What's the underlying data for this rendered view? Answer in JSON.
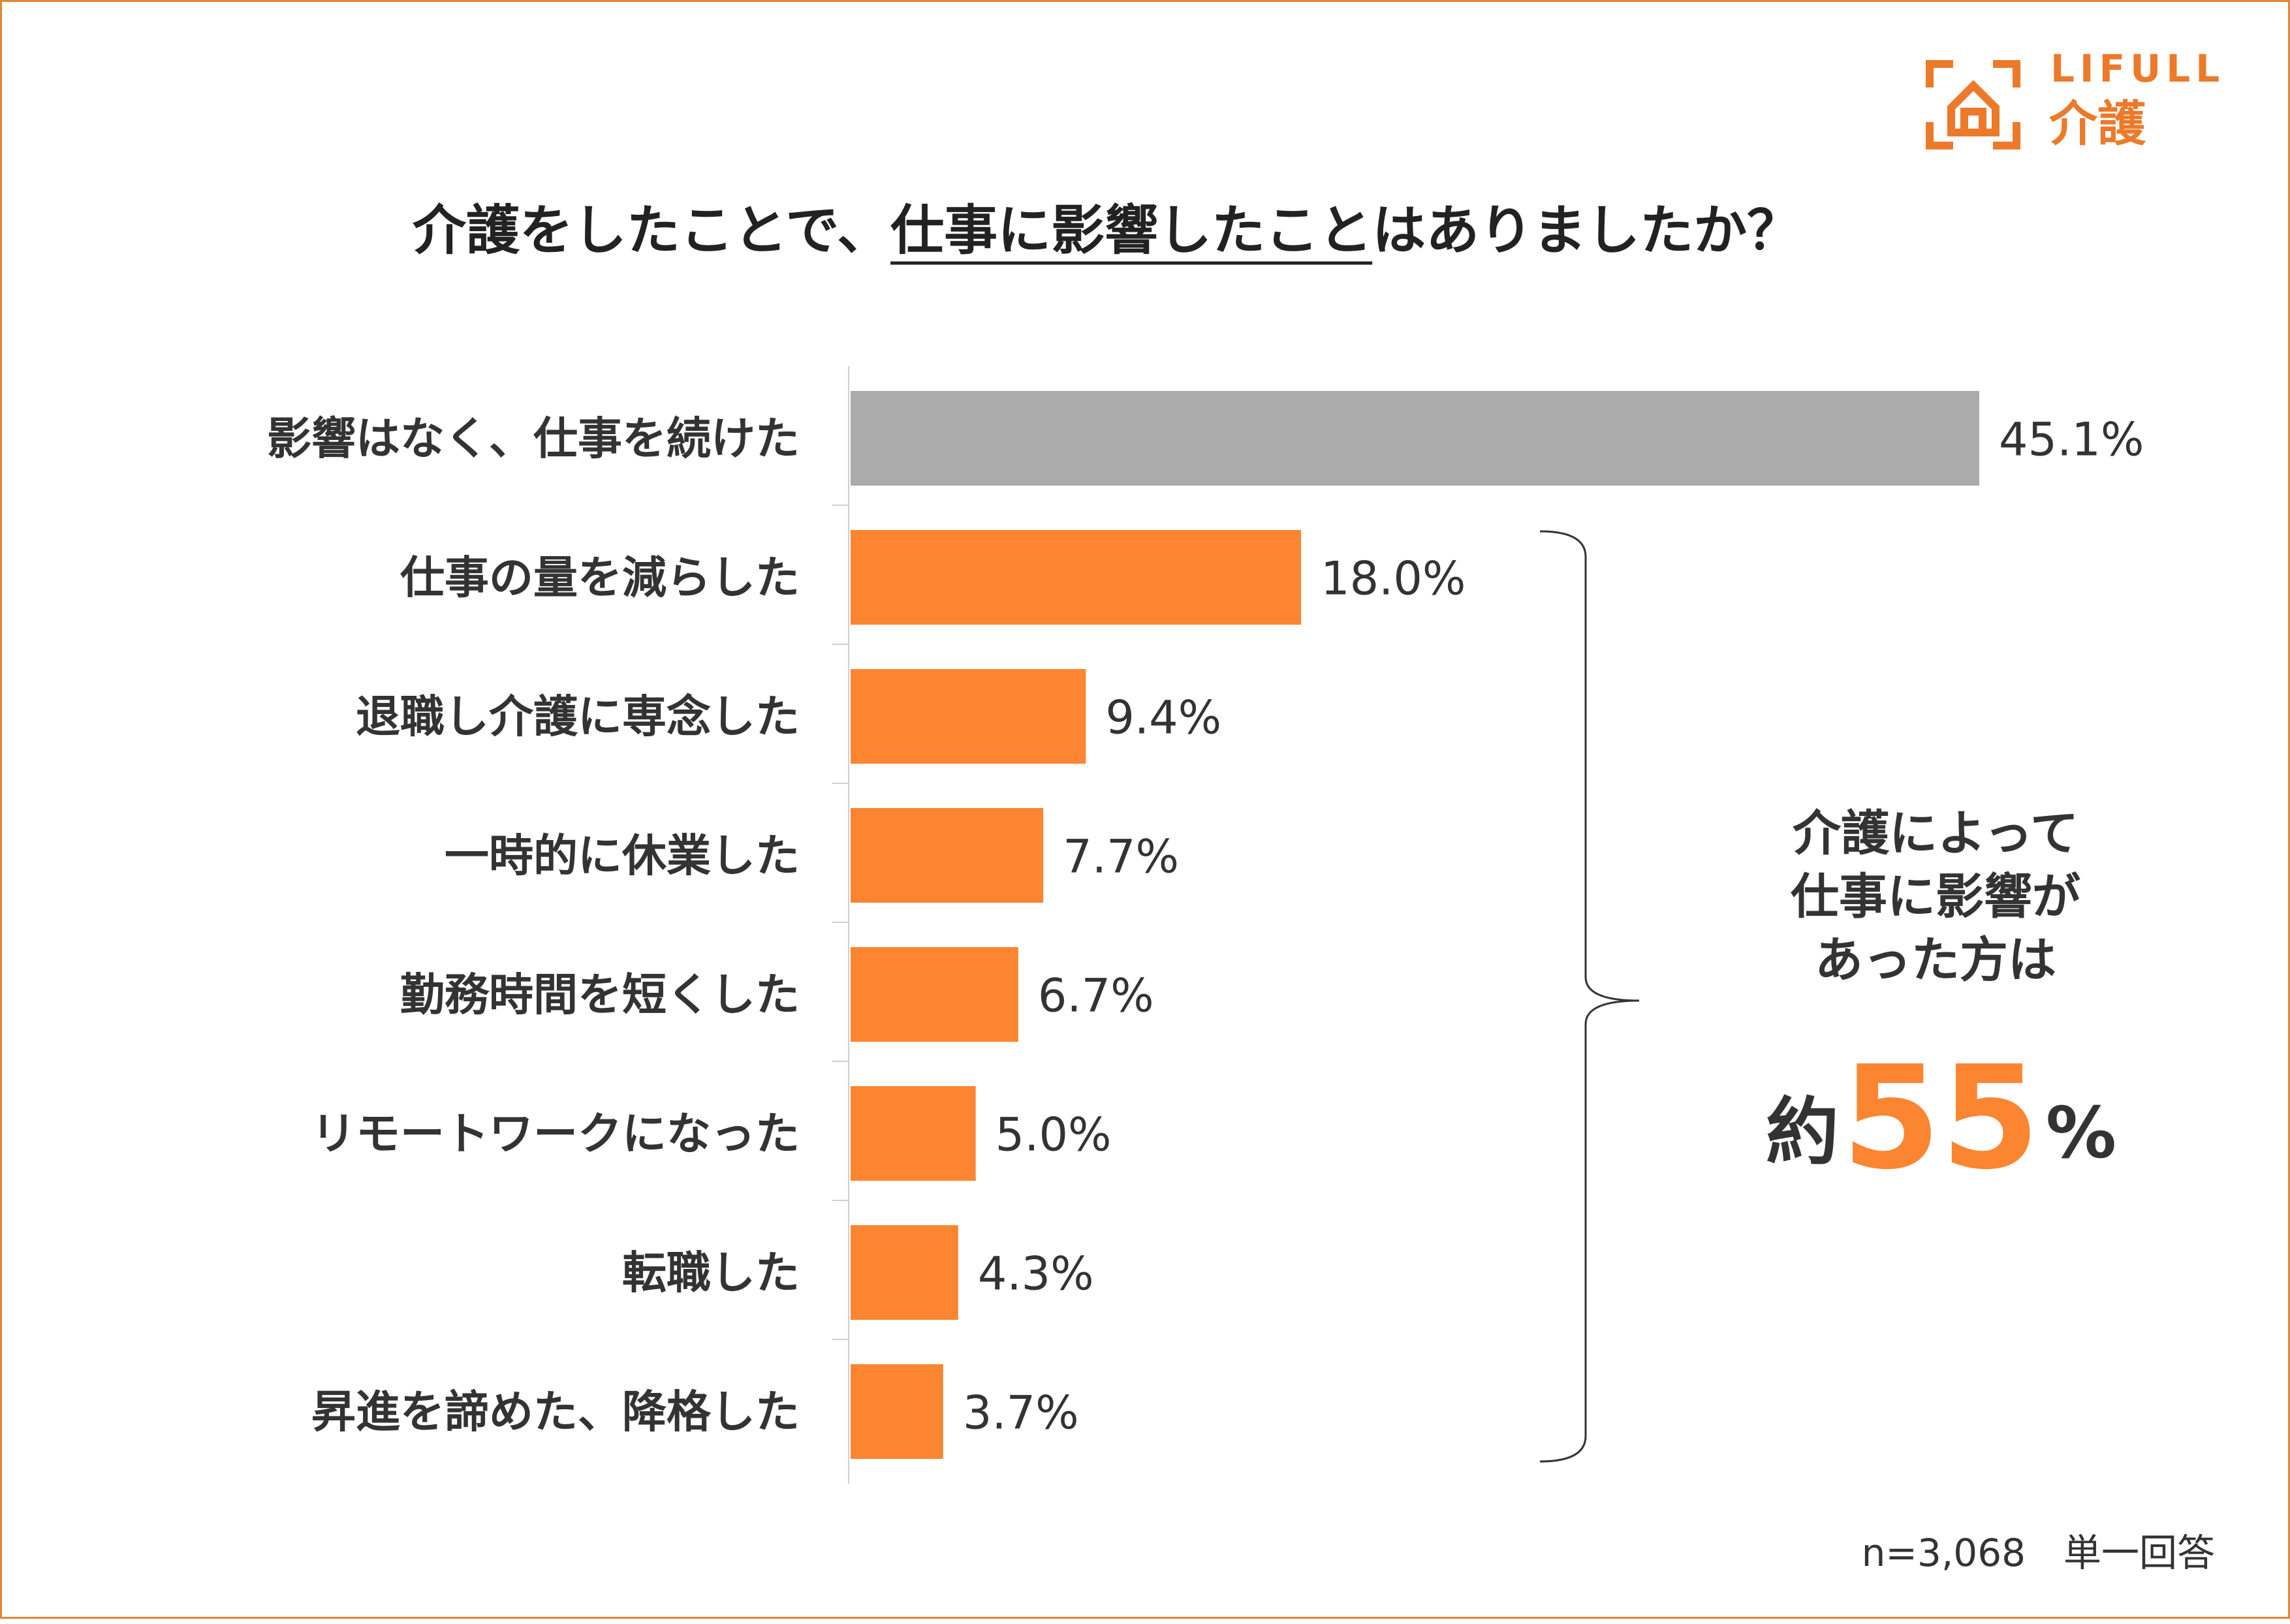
{
  "brand": {
    "name_top": "LIFULL",
    "name_bottom": "介護",
    "color": "#ec7a2a"
  },
  "title": {
    "prefix": "介護をしたことで、",
    "underlined": "仕事に影響したこと",
    "suffix": "はありましたか？"
  },
  "callout": {
    "lines": [
      "介護によって",
      "仕事に影響が",
      "あった方は"
    ],
    "approx": "約",
    "value": "55",
    "unit": "%"
  },
  "footnote": "n=3,068　単一回答",
  "chart_data": {
    "type": "bar",
    "orientation": "horizontal",
    "title": "介護をしたことで、仕事に影響したことはありましたか？",
    "categories": [
      "影響はなく、仕事を続けた",
      "仕事の量を減らした",
      "退職し介護に専念した",
      "一時的に休業した",
      "勤務時間を短くした",
      "リモートワークになった",
      "転職した",
      "昇進を諦めた、降格した"
    ],
    "values": [
      45.1,
      18.0,
      9.4,
      7.7,
      6.7,
      5.0,
      4.3,
      3.7
    ],
    "labels": [
      "45.1%",
      "18.0%",
      "9.4%",
      "7.7%",
      "6.7%",
      "5.0%",
      "4.3%",
      "3.7%"
    ],
    "colors": [
      "#ababab",
      "#fb8531",
      "#fb8531",
      "#fb8531",
      "#fb8531",
      "#fb8531",
      "#fb8531",
      "#fb8531"
    ],
    "unit": "%",
    "xlim": [
      0,
      45.1
    ],
    "grid": false,
    "legend": "none"
  }
}
